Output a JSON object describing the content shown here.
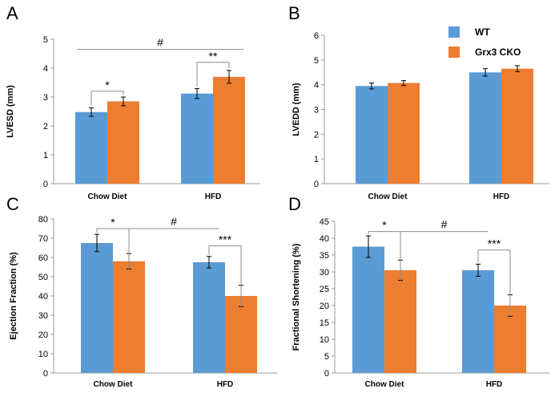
{
  "legend": {
    "entries": [
      "WT",
      "Grx3 CKO"
    ]
  },
  "colors": {
    "wt": "#5b9bd5",
    "cko": "#ed7d31",
    "axis": "#999999",
    "bracket": "#8c8c8c",
    "text": "#000000"
  },
  "chart_data": [
    {
      "type": "bar",
      "panel": "A",
      "categories": [
        "Chow Diet",
        "HFD"
      ],
      "series": [
        {
          "name": "WT",
          "values": [
            2.48,
            3.12
          ],
          "errors": [
            0.15,
            0.17
          ]
        },
        {
          "name": "Grx3 CKO",
          "values": [
            2.85,
            3.7
          ],
          "errors": [
            0.15,
            0.22
          ]
        }
      ],
      "ylabel": "LVESD (mm)",
      "ylim": [
        0,
        5
      ],
      "yticks": [
        "0",
        "1",
        "2",
        "3",
        "4",
        "5"
      ],
      "annotations": [
        {
          "label": "*",
          "kind": "within",
          "group": 0,
          "level": 3.2
        },
        {
          "label": "**",
          "kind": "within",
          "group": 1,
          "level": 4.2
        },
        {
          "label": "#",
          "kind": "line",
          "from": 0,
          "to": 1,
          "level": 4.65
        }
      ]
    },
    {
      "type": "bar",
      "panel": "B",
      "categories": [
        "Chow Diet",
        "HFD"
      ],
      "series": [
        {
          "name": "WT",
          "values": [
            3.95,
            4.5
          ],
          "errors": [
            0.12,
            0.15
          ]
        },
        {
          "name": "Grx3 CKO",
          "values": [
            4.07,
            4.65
          ],
          "errors": [
            0.1,
            0.12
          ]
        }
      ],
      "ylabel": "LVEDD (mm)",
      "ylim": [
        0,
        6
      ],
      "yticks": [
        "0",
        "1",
        "2",
        "3",
        "4",
        "5",
        "6"
      ],
      "annotations": []
    },
    {
      "type": "bar",
      "panel": "C",
      "categories": [
        "Chow Diet",
        "HFD"
      ],
      "series": [
        {
          "name": "WT",
          "values": [
            67.5,
            57.5
          ],
          "errors": [
            4.5,
            3.0
          ]
        },
        {
          "name": "Grx3 CKO",
          "values": [
            58.0,
            40.0
          ],
          "errors": [
            4.0,
            5.5
          ]
        }
      ],
      "ylabel": "Ejection Fraction (%)",
      "ylim": [
        0,
        80
      ],
      "yticks": [
        "0",
        "10",
        "20",
        "30",
        "40",
        "50",
        "60",
        "70",
        "80"
      ],
      "annotations": [
        {
          "label": "*",
          "kind": "elbow",
          "group": 0,
          "level": 75
        },
        {
          "label": "***",
          "kind": "elbow",
          "group": 1,
          "level": 66
        },
        {
          "label": "#",
          "kind": "line",
          "from": 0,
          "to": 1,
          "level": 75
        }
      ]
    },
    {
      "type": "bar",
      "panel": "D",
      "categories": [
        "Chow Diet",
        "HFD"
      ],
      "series": [
        {
          "name": "WT",
          "values": [
            37.5,
            30.5
          ],
          "errors": [
            3.2,
            1.8
          ]
        },
        {
          "name": "Grx3 CKO",
          "values": [
            30.5,
            20.0
          ],
          "errors": [
            3.0,
            3.2
          ]
        }
      ],
      "ylabel": "Fractional Shortening (%)",
      "ylim": [
        0,
        45
      ],
      "yticks": [
        "0",
        "5",
        "10",
        "15",
        "20",
        "25",
        "30",
        "35",
        "40",
        "45"
      ],
      "annotations": [
        {
          "label": "*",
          "kind": "elbow",
          "group": 0,
          "level": 42
        },
        {
          "label": "***",
          "kind": "elbow",
          "group": 1,
          "level": 36.5
        },
        {
          "label": "#",
          "kind": "line",
          "from": 0,
          "to": 1,
          "level": 42
        }
      ]
    }
  ]
}
